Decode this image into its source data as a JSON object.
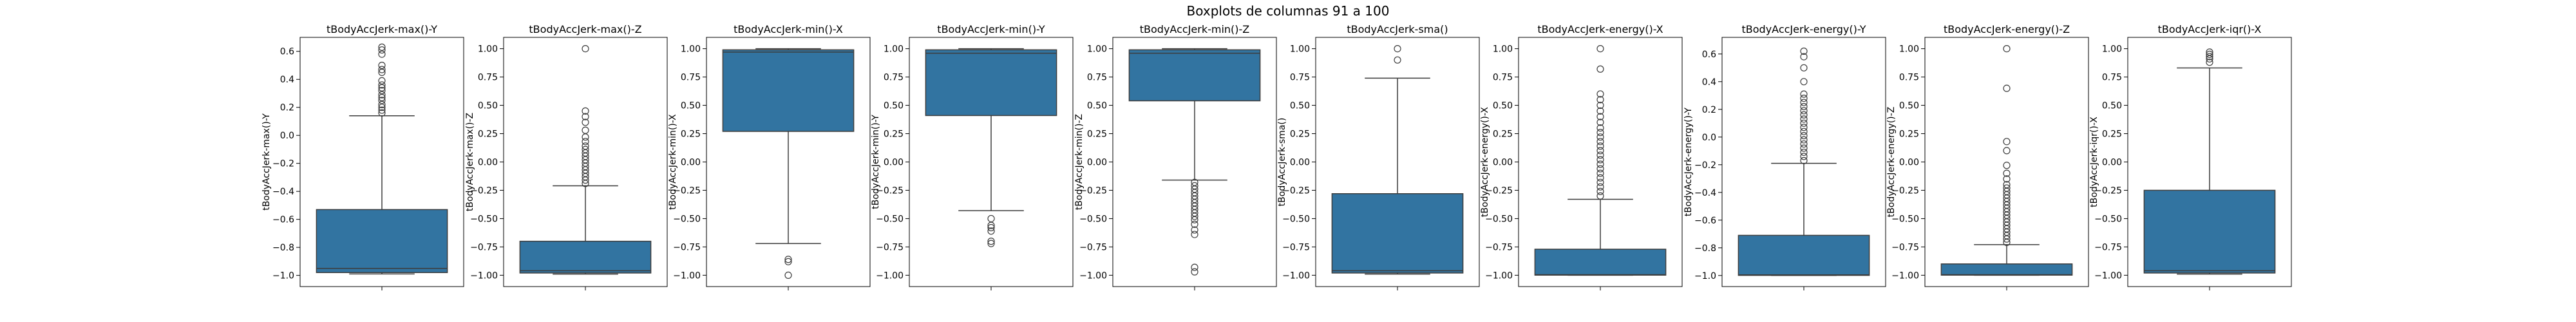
{
  "figure": {
    "title": "Boxplots de columnas 91 a 100"
  },
  "chart_data": [
    {
      "type": "box",
      "title": "tBodyAccJerk-max()-Y",
      "ylabel": "tBodyAccJerk-max()-Y",
      "ylim": [
        -1.08,
        0.7
      ],
      "yticks": [
        -1.0,
        -0.8,
        -0.6,
        -0.4,
        -0.2,
        0.0,
        0.2,
        0.4,
        0.6
      ],
      "whisker_low": -0.99,
      "q1": -0.98,
      "median": -0.95,
      "q3": -0.53,
      "whisker_high": 0.14,
      "outliers": [
        0.16,
        0.18,
        0.2,
        0.22,
        0.25,
        0.27,
        0.29,
        0.32,
        0.34,
        0.36,
        0.39,
        0.45,
        0.47,
        0.5,
        0.58,
        0.61,
        0.63
      ]
    },
    {
      "type": "box",
      "title": "tBodyAccJerk-max()-Z",
      "ylabel": "tBodyAccJerk-max()-Z",
      "ylim": [
        -1.1,
        1.1
      ],
      "yticks": [
        -1.0,
        -0.75,
        -0.5,
        -0.25,
        0.0,
        0.25,
        0.5,
        0.75,
        1.0
      ],
      "whisker_low": -0.99,
      "q1": -0.98,
      "median": -0.96,
      "q3": -0.7,
      "whisker_high": -0.21,
      "outliers": [
        -0.19,
        -0.16,
        -0.13,
        -0.1,
        -0.07,
        -0.04,
        -0.01,
        0.02,
        0.05,
        0.08,
        0.11,
        0.14,
        0.18,
        0.22,
        0.28,
        0.35,
        0.4,
        0.45,
        1.0
      ]
    },
    {
      "type": "box",
      "title": "tBodyAccJerk-min()-X",
      "ylabel": "tBodyAccJerk-min()-X",
      "ylim": [
        -1.1,
        1.1
      ],
      "yticks": [
        -1.0,
        -0.75,
        -0.5,
        -0.25,
        0.0,
        0.25,
        0.5,
        0.75,
        1.0
      ],
      "whisker_low": -0.72,
      "q1": 0.27,
      "median": 0.97,
      "q3": 0.99,
      "whisker_high": 1.0,
      "outliers": [
        -0.86,
        -0.88,
        -1.0
      ]
    },
    {
      "type": "box",
      "title": "tBodyAccJerk-min()-Y",
      "ylabel": "tBodyAccJerk-min()-Y",
      "ylim": [
        -1.1,
        1.1
      ],
      "yticks": [
        -1.0,
        -0.75,
        -0.5,
        -0.25,
        0.0,
        0.25,
        0.5,
        0.75,
        1.0
      ],
      "whisker_low": -0.43,
      "q1": 0.41,
      "median": 0.96,
      "q3": 0.99,
      "whisker_high": 1.0,
      "outliers": [
        -0.5,
        -0.56,
        -0.58,
        -0.61,
        -0.7,
        -0.72
      ]
    },
    {
      "type": "box",
      "title": "tBodyAccJerk-min()-Z",
      "ylabel": "tBodyAccJerk-min()-Z",
      "ylim": [
        -1.1,
        1.1
      ],
      "yticks": [
        -1.0,
        -0.75,
        -0.5,
        -0.25,
        0.0,
        0.25,
        0.5,
        0.75,
        1.0
      ],
      "whisker_low": -0.16,
      "q1": 0.54,
      "median": 0.96,
      "q3": 0.99,
      "whisker_high": 1.0,
      "outliers": [
        -0.18,
        -0.21,
        -0.24,
        -0.27,
        -0.3,
        -0.33,
        -0.36,
        -0.39,
        -0.42,
        -0.45,
        -0.48,
        -0.51,
        -0.55,
        -0.6,
        -0.64,
        -0.93,
        -0.97
      ]
    },
    {
      "type": "box",
      "title": "tBodyAccJerk-sma()",
      "ylabel": "tBodyAccJerk-sma()",
      "ylim": [
        -1.1,
        1.1
      ],
      "yticks": [
        -1.0,
        -0.75,
        -0.5,
        -0.25,
        0.0,
        0.25,
        0.5,
        0.75,
        1.0
      ],
      "whisker_low": -0.99,
      "q1": -0.98,
      "median": -0.96,
      "q3": -0.28,
      "whisker_high": 0.74,
      "outliers": [
        0.9,
        1.0
      ]
    },
    {
      "type": "box",
      "title": "tBodyAccJerk-energy()-X",
      "ylabel": "tBodyAccJerk-energy()-X",
      "ylim": [
        -1.1,
        1.1
      ],
      "yticks": [
        -1.0,
        -0.75,
        -0.5,
        -0.25,
        0.0,
        0.25,
        0.5,
        0.75,
        1.0
      ],
      "whisker_low": -1.0,
      "q1": -0.999,
      "median": -0.995,
      "q3": -0.77,
      "whisker_high": -0.33,
      "outliers": [
        -0.3,
        -0.26,
        -0.22,
        -0.18,
        -0.14,
        -0.1,
        -0.06,
        -0.02,
        0.02,
        0.06,
        0.1,
        0.14,
        0.18,
        0.22,
        0.26,
        0.3,
        0.35,
        0.4,
        0.45,
        0.5,
        0.55,
        0.6,
        0.82,
        1.0
      ]
    },
    {
      "type": "box",
      "title": "tBodyAccJerk-energy()-Y",
      "ylabel": "tBodyAccJerk-energy()-Y",
      "ylim": [
        -1.08,
        0.72
      ],
      "yticks": [
        -1.0,
        -0.8,
        -0.6,
        -0.4,
        -0.2,
        0.0,
        0.2,
        0.4,
        0.6
      ],
      "whisker_low": -1.0,
      "q1": -0.999,
      "median": -0.995,
      "q3": -0.71,
      "whisker_high": -0.19,
      "outliers": [
        -0.17,
        -0.14,
        -0.11,
        -0.08,
        -0.05,
        -0.02,
        0.01,
        0.04,
        0.07,
        0.1,
        0.13,
        0.16,
        0.19,
        0.22,
        0.25,
        0.28,
        0.31,
        0.4,
        0.5,
        0.58,
        0.62
      ]
    },
    {
      "type": "box",
      "title": "tBodyAccJerk-energy()-Z",
      "ylabel": "tBodyAccJerk-energy()-Z",
      "ylim": [
        -1.1,
        1.1
      ],
      "yticks": [
        -1.0,
        -0.75,
        -0.5,
        -0.25,
        0.0,
        0.25,
        0.5,
        0.75,
        1.0
      ],
      "whisker_low": -1.0,
      "q1": -0.999,
      "median": -0.995,
      "q3": -0.9,
      "whisker_high": -0.73,
      "outliers": [
        -0.71,
        -0.68,
        -0.65,
        -0.62,
        -0.59,
        -0.56,
        -0.53,
        -0.5,
        -0.47,
        -0.44,
        -0.41,
        -0.38,
        -0.35,
        -0.32,
        -0.29,
        -0.26,
        -0.23,
        -0.2,
        -0.15,
        -0.1,
        -0.03,
        0.1,
        0.18,
        0.65,
        1.0
      ]
    },
    {
      "type": "box",
      "title": "tBodyAccJerk-iqr()-X",
      "ylabel": "tBodyAccJerk-iqr()-X",
      "ylim": [
        -1.1,
        1.1
      ],
      "yticks": [
        -1.0,
        -0.75,
        -0.5,
        -0.25,
        0.0,
        0.25,
        0.5,
        0.75,
        1.0
      ],
      "whisker_low": -0.99,
      "q1": -0.98,
      "median": -0.96,
      "q3": -0.25,
      "whisker_high": 0.83,
      "outliers": [
        0.88,
        0.91,
        0.93,
        0.95,
        0.97
      ]
    }
  ],
  "colors": {
    "box_fill": "#3274a1",
    "line": "#3d3d3d",
    "frame": "#000000"
  }
}
